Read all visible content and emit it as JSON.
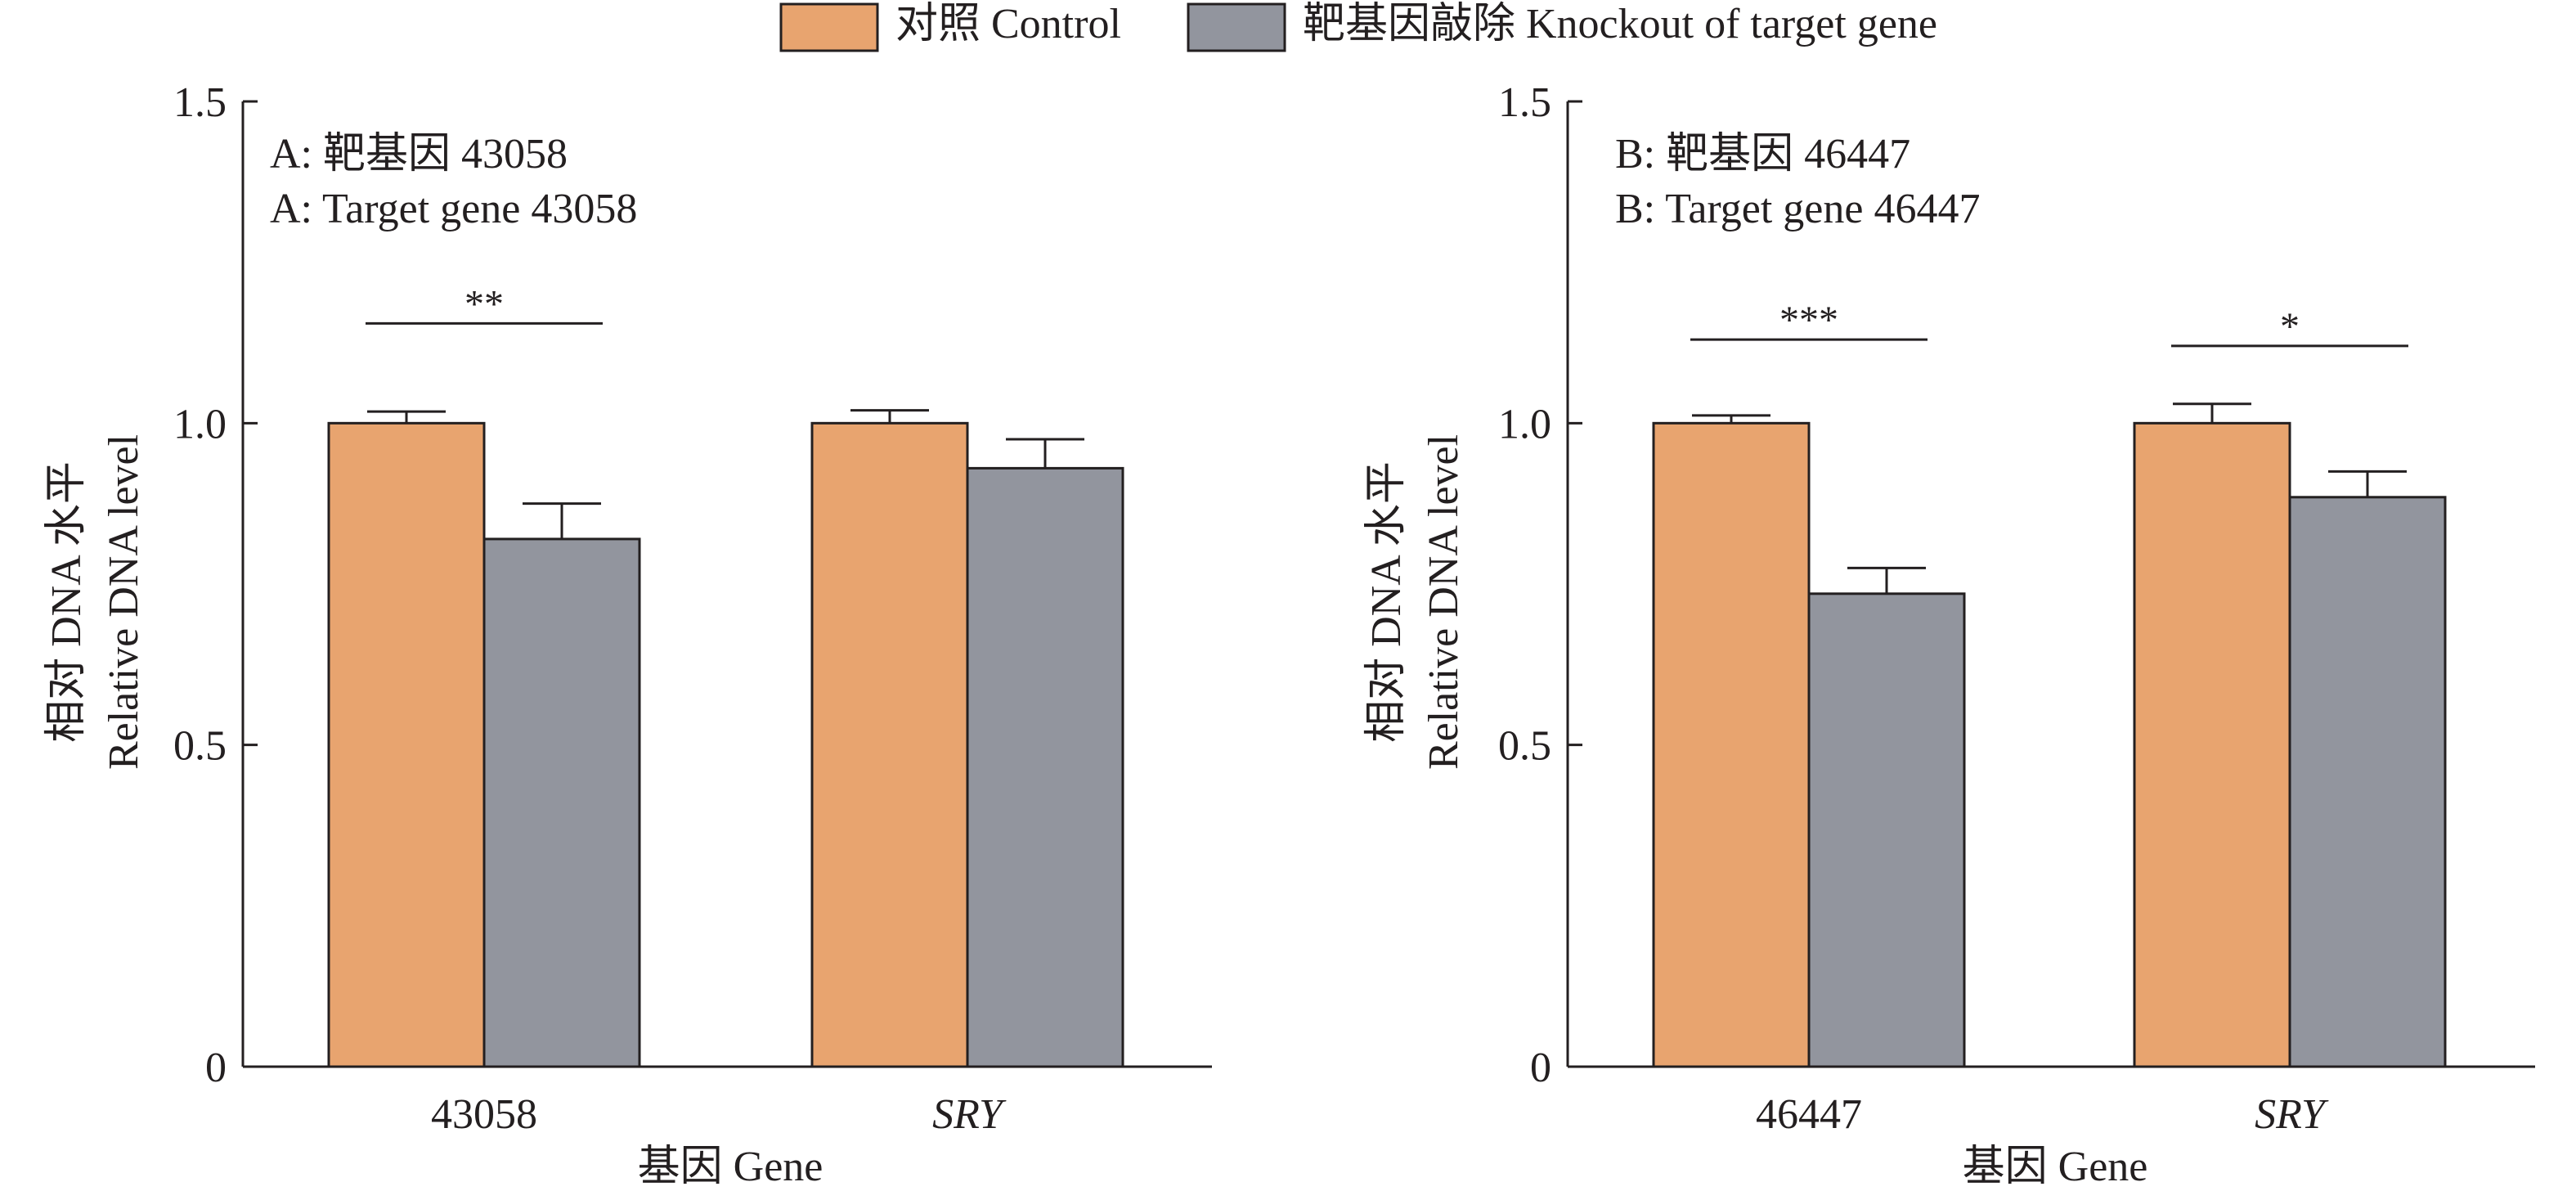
{
  "legend": {
    "items": [
      {
        "label": "对照 Control",
        "color": "#e8a46f"
      },
      {
        "label": "靶基因敲除 Knockout of target gene",
        "color": "#92959e"
      }
    ]
  },
  "colors": {
    "control": "#e8a46f",
    "knockout": "#92959e",
    "stroke": "#231f20"
  },
  "chart_data": [
    {
      "type": "bar",
      "panel": "A",
      "title_lines": [
        "A: 靶基因 43058",
        "A: Target gene 43058"
      ],
      "categories": [
        "43058",
        "SRY"
      ],
      "series": [
        {
          "name": "对照 Control",
          "values": [
            1.0,
            1.0
          ],
          "errors": [
            0.018,
            0.02
          ]
        },
        {
          "name": "靶基因敲除 Knockout of target gene",
          "values": [
            0.82,
            0.93
          ],
          "errors": [
            0.055,
            0.045
          ]
        }
      ],
      "ylabel_lines": [
        "相对 DNA 水平",
        "Relative DNA level"
      ],
      "xlabel": "基因 Gene",
      "ylim": [
        0,
        1.5
      ],
      "yticks": [
        0,
        0.5,
        1.0,
        1.5
      ],
      "ytick_labels": [
        "0",
        "0.5",
        "1.0",
        "1.5"
      ],
      "significance": [
        {
          "category_index": 0,
          "label": "**",
          "level": 1.155
        }
      ]
    },
    {
      "type": "bar",
      "panel": "B",
      "title_lines": [
        "B: 靶基因 46447",
        "B: Target gene 46447"
      ],
      "categories": [
        "46447",
        "SRY"
      ],
      "series": [
        {
          "name": "对照 Control",
          "values": [
            1.0,
            1.0
          ],
          "errors": [
            0.012,
            0.03
          ]
        },
        {
          "name": "靶基因敲除 Knockout of target gene",
          "values": [
            0.735,
            0.885
          ],
          "errors": [
            0.04,
            0.04
          ]
        }
      ],
      "ylabel_lines": [
        "相对 DNA 水平",
        "Relative DNA level"
      ],
      "xlabel": "基因 Gene",
      "ylim": [
        0,
        1.5
      ],
      "yticks": [
        0,
        0.5,
        1.0,
        1.5
      ],
      "ytick_labels": [
        "0",
        "0.5",
        "1.0",
        "1.5"
      ],
      "significance": [
        {
          "category_index": 0,
          "label": "***",
          "level": 1.13
        },
        {
          "category_index": 1,
          "label": "*",
          "level": 1.12
        }
      ]
    }
  ]
}
